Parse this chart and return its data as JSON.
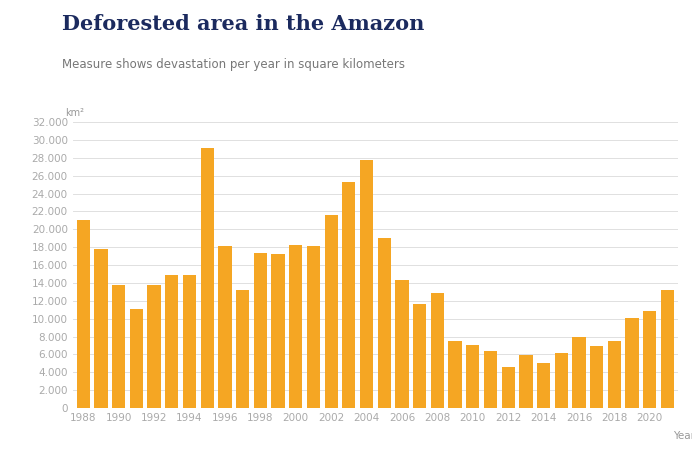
{
  "title": "Deforested area in the Amazon",
  "subtitle": "Measure shows devastation per year in square kilometers",
  "xlabel": "Year",
  "ylabel": "km²",
  "bar_color": "#F5A623",
  "background_color": "#FFFFFF",
  "title_color": "#1B2A5E",
  "subtitle_color": "#777777",
  "axis_label_color": "#999999",
  "tick_color": "#aaaaaa",
  "grid_color": "#e0e0e0",
  "years": [
    1988,
    1989,
    1990,
    1991,
    1992,
    1993,
    1994,
    1995,
    1996,
    1997,
    1998,
    1999,
    2000,
    2001,
    2002,
    2003,
    2004,
    2005,
    2006,
    2007,
    2008,
    2009,
    2010,
    2011,
    2012,
    2013,
    2014,
    2015,
    2016,
    2017,
    2018,
    2019,
    2020,
    2021
  ],
  "values": [
    21050,
    17770,
    13730,
    11030,
    13786,
    14896,
    14896,
    29059,
    18161,
    13227,
    17383,
    17259,
    18226,
    18165,
    21651,
    25247,
    27772,
    19014,
    14286,
    11651,
    12911,
    7464,
    7000,
    6418,
    4571,
    5891,
    5012,
    6207,
    7893,
    6947,
    7536,
    10129,
    10851,
    13235
  ]
}
